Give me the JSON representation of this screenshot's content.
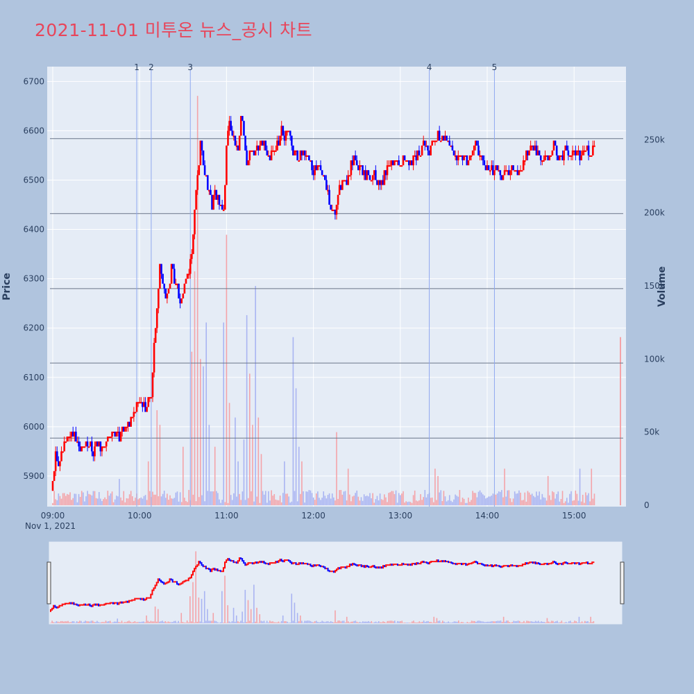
{
  "title": "2021-11-01 미투온 뉴스_공시 차트",
  "colors": {
    "background": "#b0c4de",
    "plot_bg": "#e5ecf6",
    "title": "#e8455a",
    "up": "#ff0000",
    "down": "#0000ff",
    "hline": "#6a7488",
    "vline": "#8fa8f0"
  },
  "chart_data": {
    "type": "candlestick",
    "xlabel": "",
    "ylabel": "Price",
    "y2label": "Volume",
    "xaxis_date_label": "Nov 1, 2021",
    "x_ticks": [
      "09:00",
      "10:00",
      "11:00",
      "12:00",
      "13:00",
      "14:00",
      "15:00"
    ],
    "x_range": [
      "09:00",
      "15:32"
    ],
    "y_ticks": [
      5900,
      6000,
      6100,
      6200,
      6300,
      6400,
      6500,
      6600,
      6700
    ],
    "ylim": [
      5838,
      6730
    ],
    "y2_ticks": [
      0,
      50000,
      100000,
      150000,
      200000,
      250000
    ],
    "y2_tick_labels": [
      "0",
      "50k",
      "100k",
      "150k",
      "200k",
      "250k"
    ],
    "y2lim": [
      0,
      300000
    ],
    "grid": true,
    "range_slider": true,
    "horizontal_levels": [
      5977,
      6129,
      6280,
      6432,
      6584
    ],
    "news_markers": [
      {
        "label": "1",
        "time": "09:58"
      },
      {
        "label": "2",
        "time": "10:08"
      },
      {
        "label": "3",
        "time": "10:35"
      },
      {
        "label": "4",
        "time": "13:20"
      },
      {
        "label": "5",
        "time": "14:05"
      }
    ],
    "price_path": [
      [
        "09:00",
        5880
      ],
      [
        "09:01",
        5900
      ],
      [
        "09:02",
        5945
      ],
      [
        "09:04",
        5920
      ],
      [
        "09:06",
        5940
      ],
      [
        "09:08",
        5965
      ],
      [
        "09:10",
        5970
      ],
      [
        "09:12",
        5975
      ],
      [
        "09:14",
        5990
      ],
      [
        "09:16",
        5975
      ],
      [
        "09:18",
        5960
      ],
      [
        "09:20",
        5965
      ],
      [
        "09:22",
        5958
      ],
      [
        "09:24",
        5955
      ],
      [
        "09:26",
        5965
      ],
      [
        "09:28",
        5945
      ],
      [
        "09:30",
        5975
      ],
      [
        "09:32",
        5968
      ],
      [
        "09:34",
        5960
      ],
      [
        "09:36",
        5970
      ],
      [
        "09:38",
        5980
      ],
      [
        "09:40",
        5975
      ],
      [
        "09:42",
        5990
      ],
      [
        "09:44",
        5985
      ],
      [
        "09:46",
        5980
      ],
      [
        "09:48",
        5990
      ],
      [
        "09:50",
        5995
      ],
      [
        "09:52",
        6005
      ],
      [
        "09:54",
        6010
      ],
      [
        "09:56",
        6025
      ],
      [
        "09:58",
        6045
      ],
      [
        "10:00",
        6060
      ],
      [
        "10:02",
        6045
      ],
      [
        "10:04",
        6038
      ],
      [
        "10:06",
        6050
      ],
      [
        "10:08",
        6060
      ],
      [
        "10:10",
        6160
      ],
      [
        "10:12",
        6240
      ],
      [
        "10:14",
        6320
      ],
      [
        "10:16",
        6290
      ],
      [
        "10:18",
        6260
      ],
      [
        "10:20",
        6280
      ],
      [
        "10:22",
        6320
      ],
      [
        "10:24",
        6300
      ],
      [
        "10:26",
        6280
      ],
      [
        "10:28",
        6255
      ],
      [
        "10:30",
        6270
      ],
      [
        "10:32",
        6300
      ],
      [
        "10:34",
        6320
      ],
      [
        "10:36",
        6350
      ],
      [
        "10:38",
        6440
      ],
      [
        "10:40",
        6500
      ],
      [
        "10:42",
        6580
      ],
      [
        "10:44",
        6540
      ],
      [
        "10:46",
        6500
      ],
      [
        "10:48",
        6480
      ],
      [
        "10:50",
        6440
      ],
      [
        "10:52",
        6480
      ],
      [
        "10:54",
        6460
      ],
      [
        "10:56",
        6450
      ],
      [
        "10:58",
        6440
      ],
      [
        "11:00",
        6560
      ],
      [
        "11:02",
        6620
      ],
      [
        "11:04",
        6600
      ],
      [
        "11:06",
        6570
      ],
      [
        "11:08",
        6560
      ],
      [
        "11:10",
        6620
      ],
      [
        "11:12",
        6600
      ],
      [
        "11:14",
        6520
      ],
      [
        "11:16",
        6560
      ],
      [
        "11:18",
        6570
      ],
      [
        "11:20",
        6555
      ],
      [
        "11:22",
        6560
      ],
      [
        "11:24",
        6580
      ],
      [
        "11:26",
        6570
      ],
      [
        "11:28",
        6560
      ],
      [
        "11:30",
        6550
      ],
      [
        "11:32",
        6560
      ],
      [
        "11:34",
        6570
      ],
      [
        "11:36",
        6580
      ],
      [
        "11:38",
        6600
      ],
      [
        "11:40",
        6590
      ],
      [
        "11:42",
        6600
      ],
      [
        "11:44",
        6580
      ],
      [
        "11:46",
        6560
      ],
      [
        "11:48",
        6550
      ],
      [
        "11:50",
        6540
      ],
      [
        "11:52",
        6560
      ],
      [
        "11:54",
        6555
      ],
      [
        "11:56",
        6540
      ],
      [
        "11:58",
        6530
      ],
      [
        "12:00",
        6520
      ],
      [
        "12:02",
        6530
      ],
      [
        "12:04",
        6520
      ],
      [
        "12:06",
        6510
      ],
      [
        "12:08",
        6500
      ],
      [
        "12:10",
        6470
      ],
      [
        "12:12",
        6440
      ],
      [
        "12:14",
        6430
      ],
      [
        "12:16",
        6450
      ],
      [
        "12:18",
        6480
      ],
      [
        "12:20",
        6500
      ],
      [
        "12:22",
        6490
      ],
      [
        "12:24",
        6510
      ],
      [
        "12:26",
        6530
      ],
      [
        "12:28",
        6540
      ],
      [
        "12:30",
        6520
      ],
      [
        "12:32",
        6525
      ],
      [
        "12:34",
        6520
      ],
      [
        "12:36",
        6510
      ],
      [
        "12:38",
        6505
      ],
      [
        "12:40",
        6500
      ],
      [
        "12:42",
        6510
      ],
      [
        "12:44",
        6500
      ],
      [
        "12:46",
        6490
      ],
      [
        "12:48",
        6500
      ],
      [
        "12:50",
        6515
      ],
      [
        "12:52",
        6530
      ],
      [
        "12:54",
        6540
      ],
      [
        "12:56",
        6545
      ],
      [
        "12:58",
        6535
      ],
      [
        "13:00",
        6530
      ],
      [
        "13:02",
        6540
      ],
      [
        "13:04",
        6545
      ],
      [
        "13:06",
        6530
      ],
      [
        "13:08",
        6540
      ],
      [
        "13:10",
        6550
      ],
      [
        "13:12",
        6555
      ],
      [
        "13:14",
        6560
      ],
      [
        "13:16",
        6570
      ],
      [
        "13:18",
        6560
      ],
      [
        "13:20",
        6555
      ],
      [
        "13:22",
        6570
      ],
      [
        "13:24",
        6580
      ],
      [
        "13:26",
        6590
      ],
      [
        "13:28",
        6580
      ],
      [
        "13:30",
        6590
      ],
      [
        "13:32",
        6585
      ],
      [
        "13:34",
        6570
      ],
      [
        "13:36",
        6560
      ],
      [
        "13:38",
        6550
      ],
      [
        "13:40",
        6540
      ],
      [
        "13:42",
        6545
      ],
      [
        "13:44",
        6550
      ],
      [
        "13:46",
        6540
      ],
      [
        "13:48",
        6545
      ],
      [
        "13:50",
        6560
      ],
      [
        "13:52",
        6570
      ],
      [
        "13:54",
        6555
      ],
      [
        "13:56",
        6540
      ],
      [
        "13:58",
        6530
      ],
      [
        "14:00",
        6525
      ],
      [
        "14:02",
        6520
      ],
      [
        "14:04",
        6515
      ],
      [
        "14:06",
        6520
      ],
      [
        "14:08",
        6510
      ],
      [
        "14:10",
        6505
      ],
      [
        "14:12",
        6520
      ],
      [
        "14:14",
        6510
      ],
      [
        "14:16",
        6520
      ],
      [
        "14:18",
        6530
      ],
      [
        "14:20",
        6520
      ],
      [
        "14:22",
        6510
      ],
      [
        "14:24",
        6525
      ],
      [
        "14:26",
        6540
      ],
      [
        "14:28",
        6560
      ],
      [
        "14:30",
        6565
      ],
      [
        "14:32",
        6560
      ],
      [
        "14:34",
        6555
      ],
      [
        "14:36",
        6550
      ],
      [
        "14:38",
        6545
      ],
      [
        "14:40",
        6540
      ],
      [
        "14:42",
        6550
      ],
      [
        "14:44",
        6560
      ],
      [
        "14:46",
        6570
      ],
      [
        "14:48",
        6560
      ],
      [
        "14:50",
        6545
      ],
      [
        "14:52",
        6550
      ],
      [
        "14:54",
        6560
      ],
      [
        "14:56",
        6555
      ],
      [
        "14:58",
        6550
      ],
      [
        "15:00",
        6555
      ],
      [
        "15:02",
        6560
      ],
      [
        "15:04",
        6550
      ],
      [
        "15:06",
        6560
      ],
      [
        "15:08",
        6565
      ],
      [
        "15:10",
        6555
      ],
      [
        "15:12",
        6560
      ],
      [
        "15:14",
        6570
      ]
    ],
    "volume_spikes": [
      [
        "09:46",
        18000
      ],
      [
        "09:58",
        8000
      ],
      [
        "10:06",
        30000
      ],
      [
        "10:12",
        65000
      ],
      [
        "10:14",
        55000
      ],
      [
        "10:30",
        40000
      ],
      [
        "10:36",
        105000
      ],
      [
        "10:38",
        160000
      ],
      [
        "10:40",
        280000
      ],
      [
        "10:42",
        100000
      ],
      [
        "10:44",
        95000
      ],
      [
        "10:46",
        125000
      ],
      [
        "10:48",
        55000
      ],
      [
        "10:52",
        40000
      ],
      [
        "10:58",
        125000
      ],
      [
        "11:00",
        185000
      ],
      [
        "11:02",
        70000
      ],
      [
        "11:06",
        60000
      ],
      [
        "11:08",
        30000
      ],
      [
        "11:12",
        45000
      ],
      [
        "11:14",
        130000
      ],
      [
        "11:16",
        90000
      ],
      [
        "11:18",
        55000
      ],
      [
        "11:20",
        150000
      ],
      [
        "11:22",
        60000
      ],
      [
        "11:24",
        35000
      ],
      [
        "11:40",
        30000
      ],
      [
        "11:46",
        115000
      ],
      [
        "11:48",
        80000
      ],
      [
        "11:50",
        40000
      ],
      [
        "11:52",
        30000
      ],
      [
        "12:16",
        50000
      ],
      [
        "12:24",
        25000
      ],
      [
        "13:24",
        25000
      ],
      [
        "13:26",
        20000
      ],
      [
        "14:12",
        25000
      ],
      [
        "14:42",
        20000
      ],
      [
        "15:04",
        25000
      ],
      [
        "15:12",
        25000
      ],
      [
        "15:30",
        115000
      ]
    ]
  }
}
